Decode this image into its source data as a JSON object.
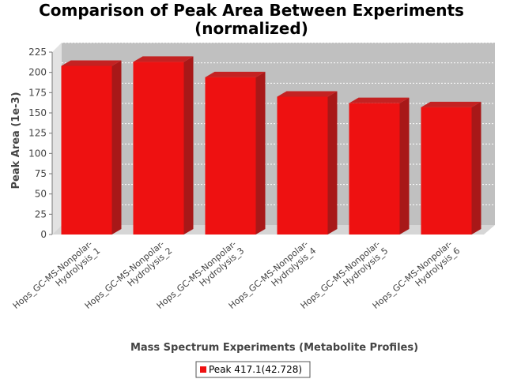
{
  "chart_data": {
    "type": "bar",
    "title": "Comparison of Peak Area Between Experiments",
    "subtitle": "(normalized)",
    "xlabel": "Mass Spectrum Experiments (Metabolite Profiles)",
    "ylabel": "Peak Area (1e-3)",
    "ylim": [
      0,
      225
    ],
    "yticks": [
      "0",
      "25",
      "50",
      "75",
      "100",
      "125",
      "150",
      "175",
      "200",
      "225"
    ],
    "categories": [
      [
        "Hops_GC-MS-Nonpolar-",
        "Hydrolysis_1"
      ],
      [
        "Hops_GC-MS-Nonpolar-",
        "Hydrolysis_2"
      ],
      [
        "Hops_GC-MS-Nonpolar-",
        "Hydrolysis_3"
      ],
      [
        "Hops_GC-MS-Nonpolar-",
        "Hydrolysis_4"
      ],
      [
        "Hops_GC-MS-Nonpolar-",
        "Hydrolysis_5"
      ],
      [
        "Hops_GC-MS-Nonpolar-",
        "Hydrolysis_6"
      ]
    ],
    "series": [
      {
        "name": "Peak 417.1(42.728)",
        "values": [
          208,
          213,
          194,
          170,
          162,
          157
        ],
        "color": "#ee1111"
      }
    ],
    "grid": true,
    "legend_position": "bottom-center",
    "plot_background": "#c0c0c0"
  }
}
